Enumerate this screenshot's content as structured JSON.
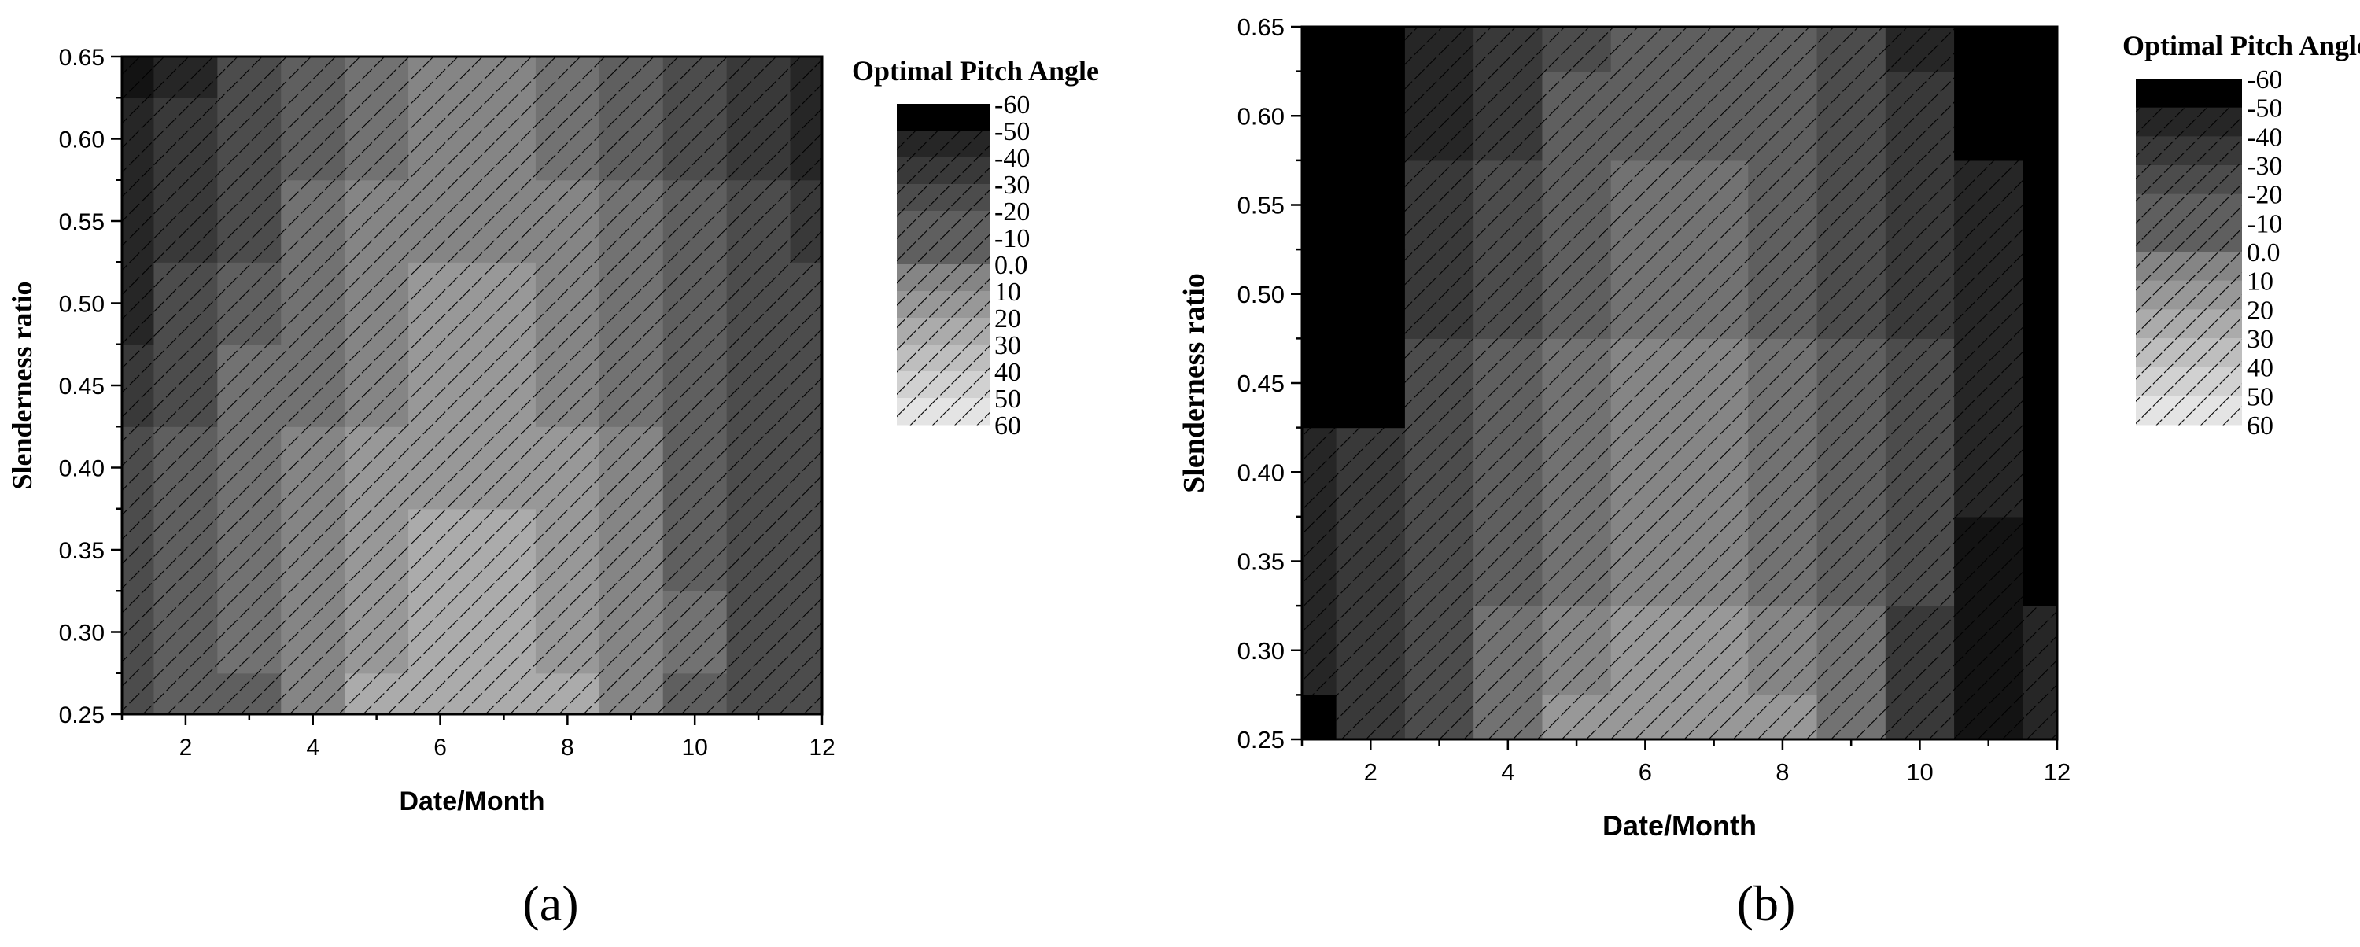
{
  "figure": {
    "colors": {
      "background": "#ffffff",
      "axis": "#000000",
      "hatch": "#000000",
      "scale_darkest": "#000000",
      "scale_lightest": "#e4e4e4"
    },
    "panels": [
      {
        "label": "(a)"
      },
      {
        "label": "(b)"
      }
    ]
  },
  "chart_data": [
    {
      "type": "heatmap",
      "panel": "(a)",
      "title": "",
      "xlabel": "Date/Month",
      "ylabel": "Slenderness ratio",
      "xlim": [
        1,
        12
      ],
      "ylim": [
        0.25,
        0.65
      ],
      "x_ticks": [
        "2",
        "4",
        "6",
        "8",
        "10",
        "12"
      ],
      "y_ticks": [
        "0.25",
        "0.30",
        "0.35",
        "0.40",
        "0.45",
        "0.50",
        "0.55",
        "0.60",
        "0.65"
      ],
      "x": [
        1,
        2,
        3,
        4,
        5,
        6,
        7,
        8,
        9,
        10,
        11,
        12
      ],
      "y": [
        0.25,
        0.3,
        0.35,
        0.4,
        0.45,
        0.5,
        0.55,
        0.6,
        0.65
      ],
      "z": [
        [
          -20,
          -10,
          -10,
          10,
          30,
          30,
          30,
          30,
          10,
          -10,
          -20,
          -20
        ],
        [
          -20,
          -10,
          0,
          10,
          20,
          30,
          30,
          20,
          10,
          0,
          -20,
          -20
        ],
        [
          -20,
          -10,
          0,
          10,
          20,
          30,
          30,
          20,
          10,
          -10,
          -20,
          -20
        ],
        [
          -20,
          -10,
          0,
          10,
          20,
          20,
          20,
          20,
          10,
          -10,
          -20,
          -20
        ],
        [
          -30,
          -20,
          0,
          0,
          10,
          20,
          20,
          10,
          0,
          -10,
          -20,
          -20
        ],
        [
          -40,
          -20,
          -10,
          0,
          10,
          20,
          20,
          10,
          0,
          -10,
          -20,
          -20
        ],
        [
          -40,
          -30,
          -20,
          0,
          10,
          10,
          10,
          10,
          0,
          -10,
          -20,
          -30
        ],
        [
          -40,
          -30,
          -20,
          -10,
          0,
          10,
          10,
          0,
          -10,
          -20,
          -30,
          -40
        ],
        [
          -50,
          -40,
          -20,
          -10,
          0,
          10,
          10,
          0,
          -10,
          -20,
          -30,
          -40
        ]
      ],
      "colorbar": {
        "title": "Optimal Pitch Angle",
        "levels": [
          "-60",
          "-50",
          "-40",
          "-30",
          "-20",
          "-10",
          "0.0",
          "10",
          "20",
          "30",
          "40",
          "50",
          "60"
        ]
      }
    },
    {
      "type": "heatmap",
      "panel": "(b)",
      "title": "",
      "xlabel": "Date/Month",
      "ylabel": "Slenderness ratio",
      "xlim": [
        1,
        12
      ],
      "ylim": [
        0.25,
        0.65
      ],
      "x_ticks": [
        "2",
        "4",
        "6",
        "8",
        "10",
        "12"
      ],
      "y_ticks": [
        "0.25",
        "0.30",
        "0.35",
        "0.40",
        "0.45",
        "0.50",
        "0.55",
        "0.60",
        "0.65"
      ],
      "x": [
        1,
        2,
        3,
        4,
        5,
        6,
        7,
        8,
        9,
        10,
        11,
        12
      ],
      "y": [
        0.25,
        0.3,
        0.35,
        0.4,
        0.45,
        0.5,
        0.55,
        0.6,
        0.65
      ],
      "z": [
        [
          -60,
          -30,
          -20,
          0,
          20,
          20,
          20,
          20,
          0,
          -30,
          -50,
          -40
        ],
        [
          -40,
          -30,
          -20,
          0,
          10,
          20,
          20,
          10,
          0,
          -30,
          -50,
          -40
        ],
        [
          -40,
          -30,
          -20,
          -10,
          0,
          10,
          10,
          0,
          -10,
          -20,
          -50,
          -60
        ],
        [
          -40,
          -30,
          -20,
          -10,
          0,
          10,
          10,
          0,
          -10,
          -20,
          -40,
          -60
        ],
        [
          -60,
          -60,
          -20,
          -10,
          0,
          10,
          10,
          0,
          -10,
          -20,
          -40,
          -60
        ],
        [
          -60,
          -60,
          -30,
          -20,
          -10,
          0,
          0,
          -10,
          -20,
          -30,
          -40,
          -60
        ],
        [
          -60,
          -60,
          -30,
          -20,
          -10,
          0,
          0,
          -10,
          -20,
          -30,
          -40,
          -60
        ],
        [
          -60,
          -60,
          -40,
          -30,
          -10,
          -10,
          -10,
          -10,
          -20,
          -30,
          -60,
          -60
        ],
        [
          -60,
          -60,
          -40,
          -30,
          -20,
          -10,
          -10,
          -10,
          -20,
          -40,
          -60,
          -60
        ]
      ],
      "colorbar": {
        "title": "Optimal Pitch Angle",
        "levels": [
          "-60",
          "-50",
          "-40",
          "-30",
          "-20",
          "-10",
          "0.0",
          "10",
          "20",
          "30",
          "40",
          "50",
          "60"
        ]
      }
    }
  ]
}
